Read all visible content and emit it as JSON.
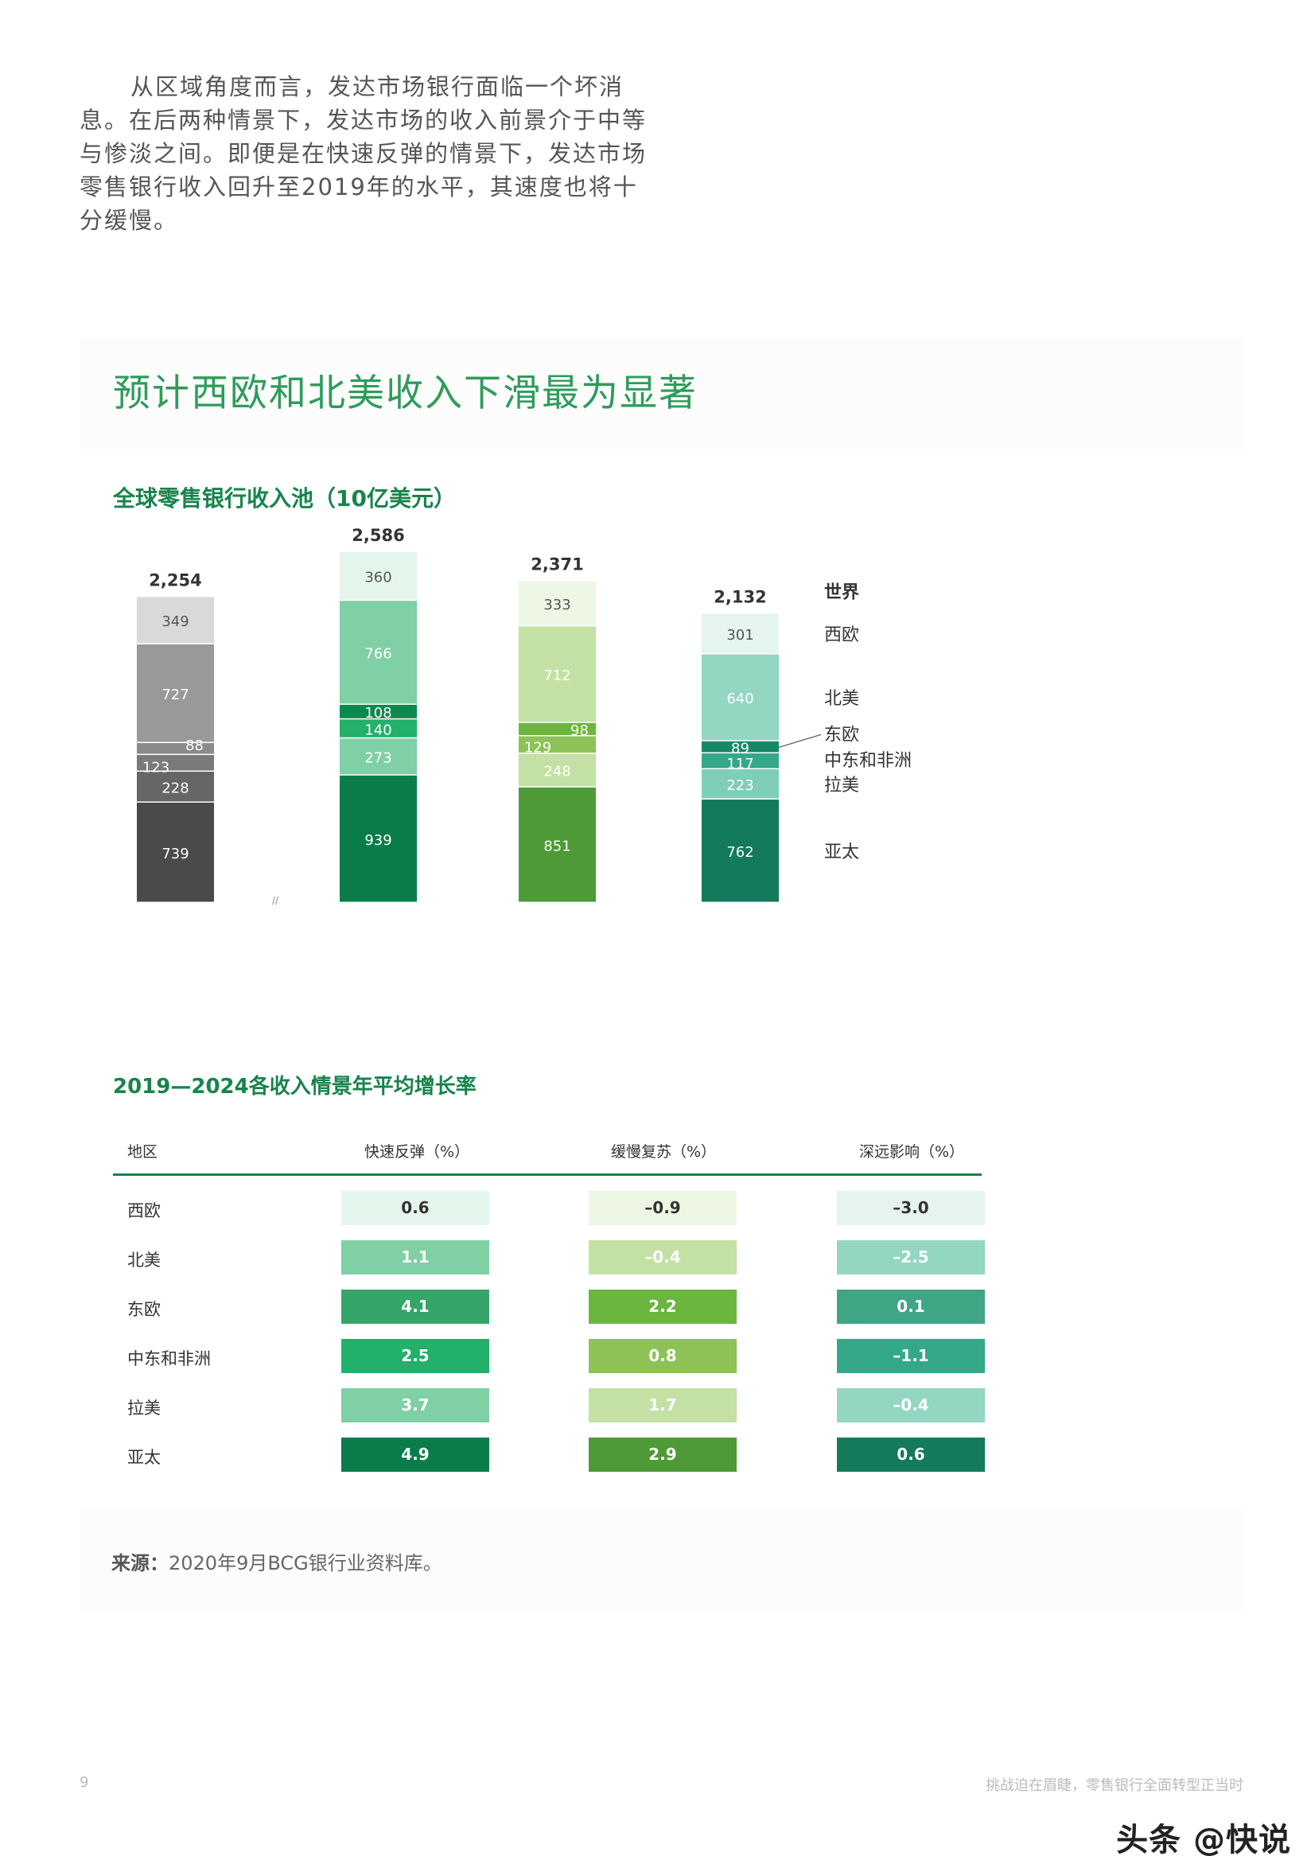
{
  "intro": "从区域角度而言，发达市场银行面临一个坏消息。在后两种情景下，发达市场的收入前景介于中等与惨淡之间。即便是在快速反弹的情景下，发达市场零售银行收入回升至2019年的水平，其速度也将十分缓慢。",
  "panel_title": "预计西欧和北美收入下滑最为显著",
  "chart_title": "全球零售银行收入池（10亿美元）",
  "chart_data": {
    "type": "bar",
    "stacked": true,
    "legend_title": "世界",
    "legend_placement": "right",
    "categories": [
      "",
      "",
      "",
      ""
    ],
    "series": [
      {
        "name": "亚太",
        "values": [
          739,
          939,
          851,
          762
        ]
      },
      {
        "name": "拉美",
        "values": [
          228,
          273,
          248,
          223
        ]
      },
      {
        "name": "中东和非洲",
        "values": [
          123,
          140,
          129,
          117
        ]
      },
      {
        "name": "东欧",
        "values": [
          88,
          108,
          98,
          89
        ]
      },
      {
        "name": "北美",
        "values": [
          727,
          766,
          712,
          640
        ]
      },
      {
        "name": "西欧",
        "values": [
          349,
          360,
          333,
          301
        ]
      }
    ],
    "totals": [
      "2,254",
      "2,586",
      "2,371",
      "2,132"
    ],
    "colors": [
      [
        "#4a4a4a",
        "#666666",
        "#7a7a7a",
        "#8a8a8a",
        "#999999",
        "#d9d9d9"
      ],
      [
        "#087d4a",
        "#7fd0a5",
        "#22b06a",
        "#0b8a4e",
        "#7fd0a5",
        "#e4f5ec"
      ],
      [
        "#4e9a36",
        "#c3e1a5",
        "#8cc256",
        "#6cb53e",
        "#c3e1a5",
        "#eef6e4"
      ],
      [
        "#137a5b",
        "#7fcfb8",
        "#35a889",
        "#178866",
        "#93d6c2",
        "#e6f4ef"
      ]
    ],
    "axis_mark": "//"
  },
  "table": {
    "title": "2019—2024各收入情景年平均增长率",
    "headers": [
      "地区",
      "快速反弹（%）",
      "缓慢复苏（%）",
      "深远影响（%）"
    ],
    "rows": [
      {
        "region": "西欧",
        "values": [
          "0.6",
          "–0.9",
          "–3.0"
        ]
      },
      {
        "region": "北美",
        "values": [
          "1.1",
          "–0.4",
          "–2.5"
        ]
      },
      {
        "region": "东欧",
        "values": [
          "4.1",
          "2.2",
          "0.1"
        ]
      },
      {
        "region": "中东和非洲",
        "values": [
          "2.5",
          "0.8",
          "–1.1"
        ]
      },
      {
        "region": "拉美",
        "values": [
          "3.7",
          "1.7",
          "–0.4"
        ]
      },
      {
        "region": "亚太",
        "values": [
          "4.9",
          "2.9",
          "0.6"
        ]
      }
    ],
    "cell_colors": [
      [
        "#e4f5ec",
        "#eef6e4",
        "#e6f4ef"
      ],
      [
        "#7fd0a5",
        "#c3e1a5",
        "#93d6c2"
      ],
      [
        "#35a569",
        "#6cb53e",
        "#3fa585"
      ],
      [
        "#22b06a",
        "#8cc256",
        "#35a889"
      ],
      [
        "#7fd0a5",
        "#c3e1a5",
        "#93d6c2"
      ],
      [
        "#087d4a",
        "#4e9a36",
        "#137a5b"
      ]
    ]
  },
  "source_label": "来源：",
  "source_text": "2020年9月BCG银行业资料库。",
  "page_number": "9",
  "footer_title": "挑战迫在眉睫，零售银行全面转型正当时",
  "watermark": "头条 @快说"
}
